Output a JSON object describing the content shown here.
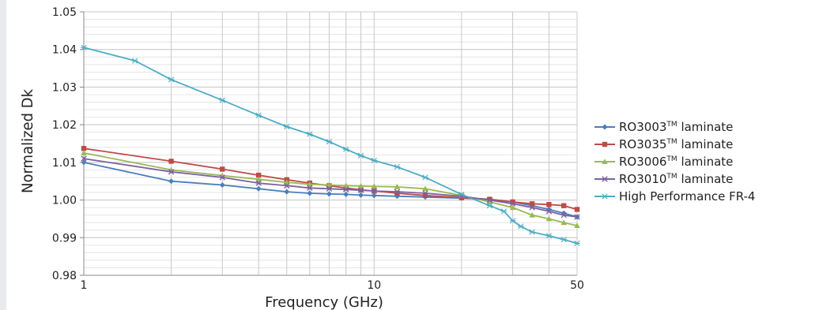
{
  "chart_data": {
    "type": "line",
    "title": "",
    "xlabel": "Frequency (GHz)",
    "ylabel": "Normalized Dk",
    "xscale": "log",
    "xlim": [
      1,
      50
    ],
    "ylim": [
      0.98,
      1.05
    ],
    "xticks": [
      "1",
      "10",
      "50"
    ],
    "yticks": [
      "0.98",
      "0.99",
      "1.00",
      "1.01",
      "1.02",
      "1.03",
      "1.04",
      "1.05"
    ],
    "grid": true,
    "legend_position": "right",
    "series": [
      {
        "name": "RO3003™ laminate",
        "label_main": "RO3003",
        "label_tm": "TM",
        "label_rest": " laminate",
        "color": "#4a7ebb",
        "marker": "diamond",
        "x": [
          1,
          2,
          3,
          4,
          5,
          6,
          7,
          8,
          9,
          10,
          12,
          15,
          20,
          25,
          30,
          35,
          40,
          45,
          50
        ],
        "y": [
          1.01,
          1.005,
          1.004,
          1.003,
          1.0022,
          1.0018,
          1.0016,
          1.0015,
          1.0013,
          1.0012,
          1.001,
          1.0008,
          1.0005,
          1.0002,
          0.9995,
          0.9985,
          0.9975,
          0.9965,
          0.9955
        ]
      },
      {
        "name": "RO3035™ laminate",
        "label_main": "RO3035",
        "label_tm": "TM",
        "label_rest": "  laminate",
        "color": "#be4b48",
        "marker": "square",
        "x": [
          1,
          2,
          3,
          4,
          5,
          6,
          7,
          8,
          9,
          10,
          12,
          15,
          20,
          25,
          30,
          35,
          40,
          45,
          50
        ],
        "y": [
          1.0137,
          1.0103,
          1.0082,
          1.0066,
          1.0054,
          1.0045,
          1.0038,
          1.0032,
          1.0027,
          1.0024,
          1.0018,
          1.0012,
          1.0006,
          1.0002,
          0.9995,
          0.999,
          0.9988,
          0.9985,
          0.9975
        ]
      },
      {
        "name": "RO3006™ laminate",
        "label_main": "RO3006",
        "label_tm": "TM",
        "label_rest": " laminate",
        "color": "#98b954",
        "marker": "triangle",
        "x": [
          1,
          2,
          3,
          4,
          5,
          6,
          7,
          8,
          9,
          10,
          12,
          15,
          20,
          25,
          30,
          35,
          40,
          45,
          50
        ],
        "y": [
          1.0125,
          1.008,
          1.0065,
          1.0055,
          1.0047,
          1.0042,
          1.004,
          1.0038,
          1.0037,
          1.0036,
          1.0035,
          1.003,
          1.0012,
          0.9995,
          0.998,
          0.996,
          0.995,
          0.994,
          0.9932
        ]
      },
      {
        "name": "RO3010™ laminate",
        "label_main": "RO3010",
        "label_tm": "TM",
        "label_rest": " laminate",
        "color": "#7d60a0",
        "marker": "cross",
        "x": [
          1,
          2,
          3,
          4,
          5,
          6,
          7,
          8,
          9,
          10,
          12,
          15,
          20,
          25,
          30,
          35,
          40,
          45,
          50
        ],
        "y": [
          1.011,
          1.0075,
          1.006,
          1.0045,
          1.0038,
          1.0032,
          1.003,
          1.0028,
          1.0026,
          1.0024,
          1.0022,
          1.0018,
          1.001,
          1.0,
          0.999,
          0.998,
          0.997,
          0.996,
          0.9955
        ]
      },
      {
        "name": "High Performance FR-4",
        "label_main": "High Performance FR-4",
        "label_tm": "",
        "label_rest": "",
        "color": "#4bacc6",
        "marker": "asterisk",
        "x": [
          1,
          1.5,
          2,
          3,
          4,
          5,
          6,
          7,
          8,
          9,
          10,
          12,
          15,
          20,
          25,
          28,
          30,
          32,
          35,
          40,
          45,
          50
        ],
        "y": [
          1.0405,
          1.037,
          1.032,
          1.0265,
          1.0225,
          1.0195,
          1.0175,
          1.0155,
          1.0135,
          1.0118,
          1.0105,
          1.0088,
          1.006,
          1.0015,
          0.9985,
          0.997,
          0.9945,
          0.993,
          0.9915,
          0.9905,
          0.9895,
          0.9885
        ]
      }
    ]
  }
}
